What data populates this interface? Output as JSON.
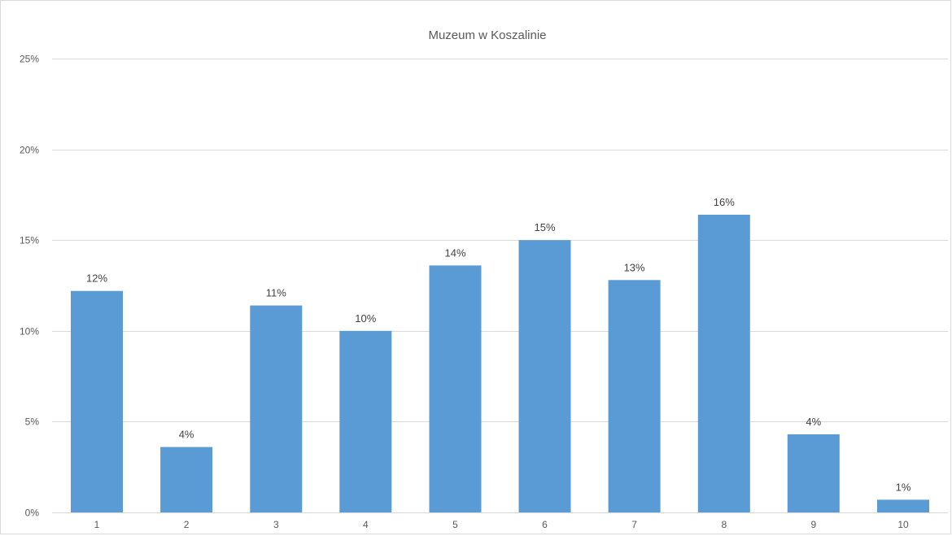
{
  "chart_data": {
    "type": "bar",
    "title": "Muzeum w Koszalinie",
    "xlabel": "",
    "ylabel": "",
    "categories": [
      "1",
      "2",
      "3",
      "4",
      "5",
      "6",
      "7",
      "8",
      "9",
      "10"
    ],
    "values": [
      12.2,
      3.6,
      11.4,
      10.0,
      13.6,
      15.0,
      12.8,
      16.4,
      4.3,
      0.7
    ],
    "data_labels": [
      "12%",
      "4%",
      "11%",
      "10%",
      "14%",
      "15%",
      "13%",
      "16%",
      "4%",
      "1%"
    ],
    "ylim": [
      0,
      25
    ],
    "yticks": [
      0,
      5,
      10,
      15,
      20,
      25
    ],
    "ytick_labels": [
      "0%",
      "5%",
      "10%",
      "15%",
      "20%",
      "25%"
    ],
    "grid": true,
    "legend": "none",
    "colors": {
      "bar": "#5b9bd5",
      "grid": "#d9d9d9",
      "text": "#595959"
    }
  }
}
